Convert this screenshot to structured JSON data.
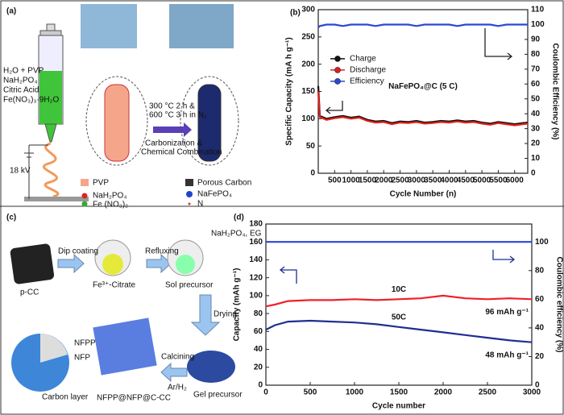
{
  "panel_labels": [
    "(a)",
    "(b)",
    "(c)",
    "(d)"
  ],
  "diagram_a": {
    "reagents": [
      "H₂O + PVP",
      "NaH₂PO₄",
      "Citric Acid",
      "Fe(NO₃)₃·9H₂O"
    ],
    "voltage": "18 kV",
    "conditions": [
      "300 °C 2 h &",
      "600 °C 3 h in N₂"
    ],
    "process": [
      "Carbonization &",
      "Chemical Combination"
    ],
    "legend": [
      "PVP",
      "NaH₂PO₄",
      "Fe (NO₃)₂",
      "Porous Carbon",
      "NaFePO₄",
      "N"
    ]
  },
  "diagram_c": {
    "labels": [
      "p-CC",
      "Dip coating",
      "Refluxing",
      "NaH₂PO₄, EG",
      "Fe³⁺-Citrate",
      "Sol precursor",
      "Drying",
      "Calcining",
      "Ar/H₂",
      "Gel precursor",
      "NFPP@NFP@C-CC",
      "NFPP",
      "NFP",
      "Carbon layer"
    ]
  },
  "chart_data": [
    {
      "type": "line",
      "xlabel": "Cycle Number (n)",
      "ylabel": "Specific Capacity (mA h g⁻¹)",
      "y2label": "Coulombic Efficiency (%)",
      "annotation": "NaFePO₄@C (5 C)",
      "xlim": [
        0,
        6400
      ],
      "xticks": [
        500,
        1000,
        1500,
        2000,
        2500,
        3000,
        3500,
        4000,
        4500,
        5000,
        5500,
        6000
      ],
      "ylim": [
        0,
        300
      ],
      "yticks": [
        0,
        50,
        100,
        150,
        200,
        250,
        300
      ],
      "y2lim": [
        0,
        110
      ],
      "y2ticks": [
        0,
        10,
        20,
        30,
        40,
        50,
        60,
        70,
        80,
        90,
        100,
        110
      ],
      "legend": "center-left",
      "x": [
        1,
        50,
        250,
        500,
        750,
        1000,
        1250,
        1500,
        1750,
        2000,
        2250,
        2500,
        2750,
        3000,
        3250,
        3500,
        3750,
        4000,
        4250,
        4500,
        4750,
        5000,
        5250,
        5500,
        5750,
        6000,
        6250,
        6400
      ],
      "series": [
        {
          "name": "Charge",
          "color": "#111111",
          "values": [
            160,
            105,
            100,
            103,
            105,
            102,
            104,
            98,
            95,
            96,
            92,
            95,
            94,
            96,
            93,
            94,
            96,
            95,
            97,
            95,
            96,
            93,
            91,
            94,
            92,
            90,
            92,
            93
          ]
        },
        {
          "name": "Discharge",
          "color": "#e0201a",
          "values": [
            150,
            103,
            98,
            101,
            103,
            100,
            102,
            96,
            93,
            94,
            90,
            93,
            92,
            94,
            91,
            92,
            94,
            93,
            95,
            93,
            94,
            91,
            89,
            92,
            90,
            88,
            90,
            91
          ]
        },
        {
          "name": "Efficiency",
          "color": "#2a47d8",
          "axis": "y2",
          "values": [
            98,
            99,
            100,
            100,
            99,
            100,
            100,
            100,
            99,
            100,
            100,
            100,
            100,
            99,
            100,
            100,
            100,
            100,
            99,
            100,
            100,
            100,
            100,
            99,
            100,
            100,
            100,
            100
          ]
        }
      ]
    },
    {
      "type": "line",
      "xlabel": "Cycle number",
      "ylabel": "Capacity (mAh g⁻¹)",
      "y2label": "Coulombic efficiency (%)",
      "xlim": [
        0,
        3000
      ],
      "xticks": [
        0,
        500,
        1000,
        1500,
        2000,
        2500,
        3000
      ],
      "ylim": [
        0,
        180
      ],
      "yticks": [
        0,
        20,
        40,
        60,
        80,
        100,
        120,
        140,
        160,
        180
      ],
      "y2lim": [
        0,
        112.5
      ],
      "y2ticks": [
        0,
        20,
        40,
        60,
        80,
        100
      ],
      "x": [
        1,
        100,
        250,
        500,
        750,
        1000,
        1250,
        1500,
        1750,
        2000,
        2250,
        2500,
        2750,
        3000
      ],
      "series": [
        {
          "name": "10C",
          "color": "#f0202a",
          "values": [
            88,
            90,
            94,
            95,
            95,
            96,
            95,
            96,
            97,
            100,
            97,
            96,
            97,
            96
          ],
          "value_labels": [
            null,
            null,
            null,
            null,
            null,
            null,
            null,
            null,
            null,
            null,
            null,
            null,
            null,
            "96 mAh g⁻¹"
          ]
        },
        {
          "name": "50C",
          "color": "#1f2f8f",
          "values": [
            62,
            67,
            71,
            72,
            71,
            70,
            68,
            65,
            62,
            59,
            56,
            53,
            50,
            48
          ],
          "value_labels": [
            null,
            null,
            null,
            null,
            null,
            null,
            null,
            null,
            null,
            null,
            null,
            null,
            null,
            "48 mAh g⁻¹"
          ]
        },
        {
          "color": "#2a47d8",
          "axis": "y2",
          "values": [
            100,
            100,
            100,
            100,
            100,
            100,
            100,
            100,
            100,
            100,
            100,
            100,
            100,
            100
          ]
        }
      ]
    }
  ]
}
